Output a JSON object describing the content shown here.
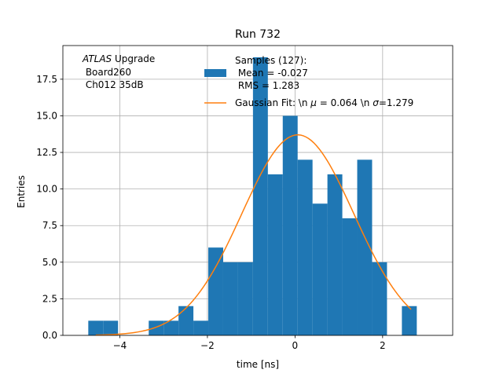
{
  "chart_data": {
    "type": "bar",
    "title": "Run 732",
    "xlabel": "time [ns]",
    "ylabel": "Entries",
    "xlim": [
      -5.3,
      3.6
    ],
    "ylim": [
      0,
      19.8
    ],
    "grid": true,
    "xticks": [
      -4,
      -2,
      0,
      2
    ],
    "xtick_labels": [
      "−4",
      "−2",
      "0",
      "2"
    ],
    "yticks": [
      0,
      2.5,
      5,
      7.5,
      10,
      12.5,
      15,
      17.5
    ],
    "ytick_labels": [
      "0.0",
      "2.5",
      "5.0",
      "7.5",
      "10.0",
      "12.5",
      "15.0",
      "17.5"
    ],
    "annotation": {
      "italic": "ATLAS",
      "rest": " Upgrade",
      "line2": " Board260",
      "line3": " Ch012 35dB"
    },
    "histogram": {
      "color": "#1f77b4",
      "bins": [
        {
          "x0": -4.72,
          "x1": -4.38,
          "count": 1
        },
        {
          "x0": -4.38,
          "x1": -4.04,
          "count": 1
        },
        {
          "x0": -3.34,
          "x1": -3.0,
          "count": 1
        },
        {
          "x0": -3.0,
          "x1": -2.66,
          "count": 1
        },
        {
          "x0": -2.66,
          "x1": -2.32,
          "count": 2
        },
        {
          "x0": -2.32,
          "x1": -1.98,
          "count": 1
        },
        {
          "x0": -1.98,
          "x1": -1.64,
          "count": 6
        },
        {
          "x0": -1.64,
          "x1": -1.3,
          "count": 5
        },
        {
          "x0": -1.3,
          "x1": -0.96,
          "count": 5
        },
        {
          "x0": -0.96,
          "x1": -0.62,
          "count": 19
        },
        {
          "x0": -0.62,
          "x1": -0.28,
          "count": 11
        },
        {
          "x0": -0.28,
          "x1": 0.06,
          "count": 15
        },
        {
          "x0": 0.06,
          "x1": 0.4,
          "count": 12
        },
        {
          "x0": 0.4,
          "x1": 0.74,
          "count": 9
        },
        {
          "x0": 0.74,
          "x1": 1.08,
          "count": 11
        },
        {
          "x0": 1.08,
          "x1": 1.42,
          "count": 8
        },
        {
          "x0": 1.42,
          "x1": 1.76,
          "count": 12
        },
        {
          "x0": 1.76,
          "x1": 2.1,
          "count": 5
        },
        {
          "x0": 2.44,
          "x1": 2.78,
          "count": 2
        }
      ]
    },
    "fit": {
      "color": "#ff7f0e",
      "mu": 0.064,
      "sigma": 1.279,
      "amplitude": 13.7,
      "x_range": [
        -4.55,
        2.65
      ]
    },
    "legend": {
      "hist_line1": "Samples (127):",
      "hist_line2": " Mean = -0.027",
      "hist_line3": " RMS = 1.283",
      "fit_prefix": "Gaussian Fit: \\n ",
      "fit_mu_sym": "μ",
      "fit_mid": " = 0.064 \\n ",
      "fit_sigma_sym": "σ",
      "fit_end": "=1.279"
    }
  }
}
